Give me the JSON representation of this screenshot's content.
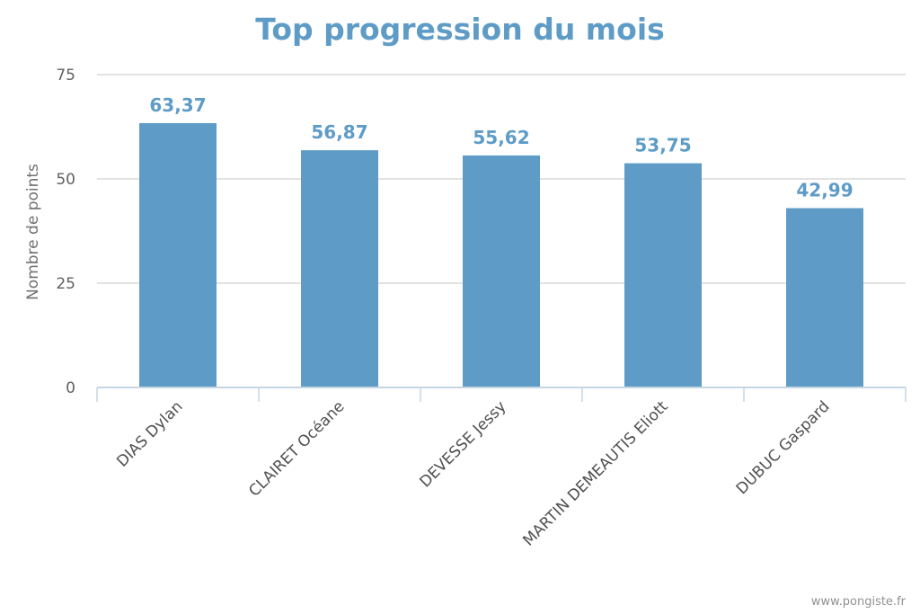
{
  "chart_data": {
    "type": "bar",
    "title": "Top progression du mois",
    "ylabel": "Nombre de points",
    "xlabel": "",
    "categories": [
      "DIAS Dylan",
      "CLAIRET Océane",
      "DEVESSE Jessy",
      "MARTIN DEMEAUTIS Eliott",
      "DUBUC Gaspard"
    ],
    "values": [
      63.37,
      56.87,
      55.62,
      53.75,
      42.99
    ],
    "value_labels": [
      "63,37",
      "56,87",
      "55,62",
      "53,75",
      "42,99"
    ],
    "ylim": [
      0,
      75
    ],
    "yticks": [
      0,
      25,
      50,
      75
    ],
    "grid": true,
    "legend": "none",
    "bar_color": "#5e9cc7",
    "title_color": "#5e9cc7"
  },
  "credit": "www.pongiste.fr"
}
